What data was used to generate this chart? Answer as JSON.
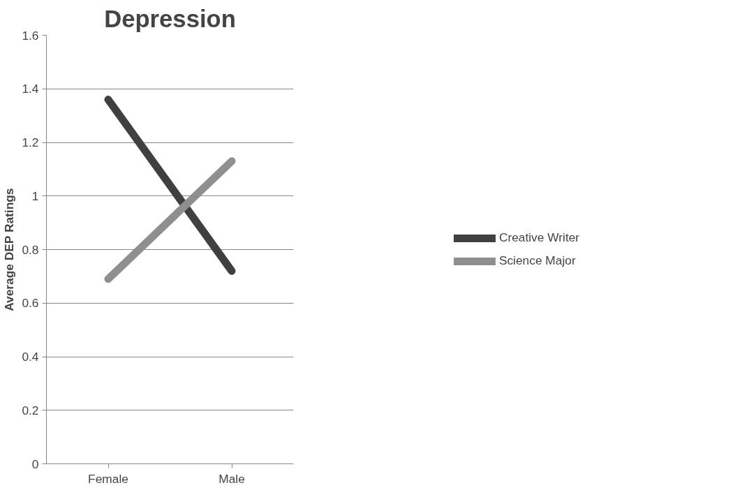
{
  "chart_data": {
    "type": "line",
    "title": "Depression",
    "ylabel": "Average DEP Ratings",
    "categories": [
      "Female",
      "Male"
    ],
    "series": [
      {
        "name": "Creative Writer",
        "color": "#404040",
        "values": [
          1.36,
          0.72
        ]
      },
      {
        "name": "Science Major",
        "color": "#8f8f8f",
        "values": [
          0.69,
          1.13
        ]
      }
    ],
    "ylim": [
      0,
      1.6
    ],
    "yticks": [
      0,
      0.2,
      0.4,
      0.6,
      0.8,
      1,
      1.2,
      1.4,
      1.6
    ],
    "grid": "y",
    "legend": "right",
    "marker": "none",
    "line_style": "solid"
  }
}
